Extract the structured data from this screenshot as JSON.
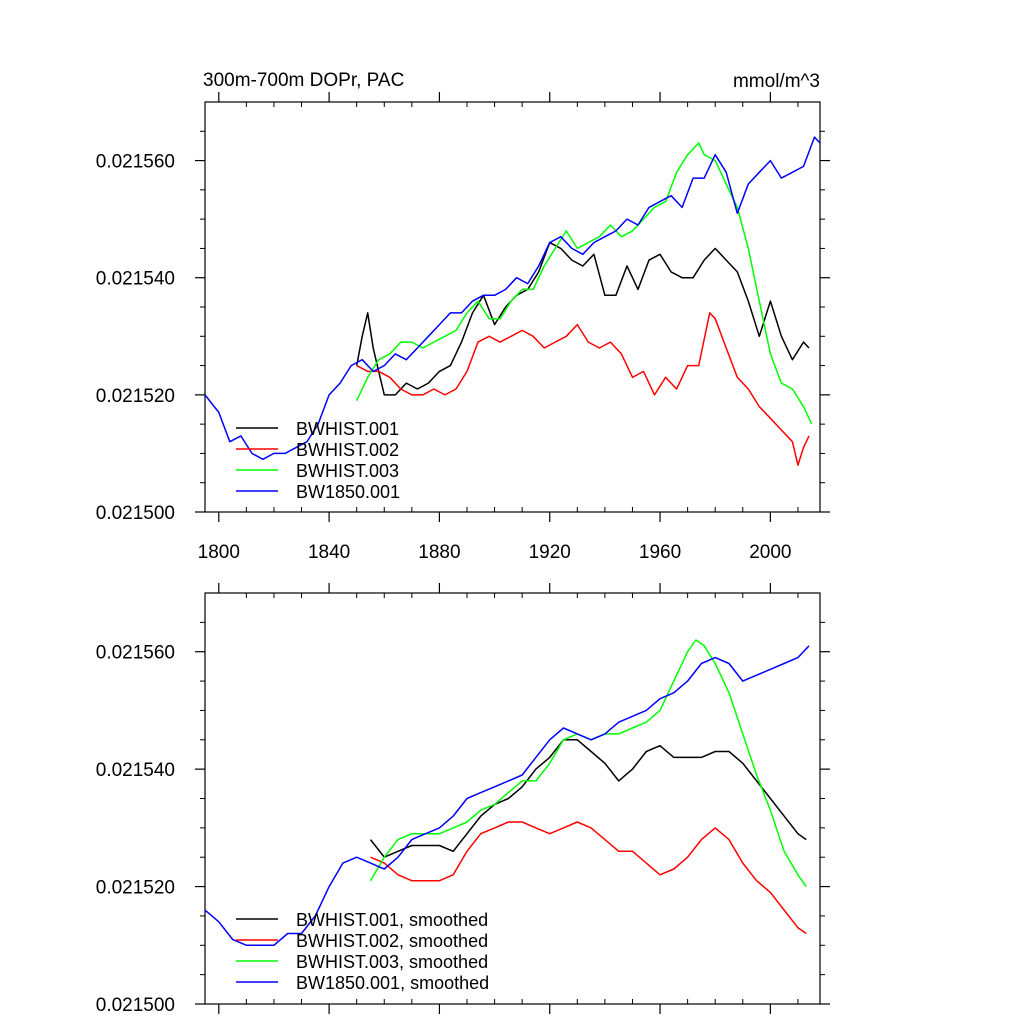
{
  "chart_data": [
    {
      "type": "line",
      "title": "300m-700m DOPr, PAC",
      "units_label": "mmol/m^3",
      "xlabel": "",
      "ylabel": "",
      "xlim": [
        1795,
        2018
      ],
      "ylim": [
        0.0215,
        0.02157
      ],
      "x_ticks": [
        1800,
        1840,
        1880,
        1920,
        1960,
        2000
      ],
      "x_tick_labels": [
        "1800",
        "1840",
        "1880",
        "1920",
        "1960",
        "2000"
      ],
      "y_ticks": [
        0.0215,
        0.02152,
        0.02154,
        0.02156
      ],
      "y_tick_labels": [
        "0.021500",
        "0.021520",
        "0.021540",
        "0.021560"
      ],
      "legend_position": "bottom-left",
      "series": [
        {
          "name": "BWHIST.001",
          "color": "#000000",
          "x": [
            1850,
            1852,
            1854,
            1856,
            1858,
            1860,
            1864,
            1868,
            1872,
            1876,
            1880,
            1884,
            1888,
            1892,
            1896,
            1900,
            1904,
            1908,
            1912,
            1916,
            1920,
            1924,
            1928,
            1932,
            1936,
            1940,
            1944,
            1948,
            1952,
            1956,
            1960,
            1964,
            1968,
            1972,
            1976,
            1980,
            1984,
            1988,
            1992,
            1996,
            2000,
            2004,
            2008,
            2012,
            2014
          ],
          "values": [
            0.021525,
            0.02153,
            0.021534,
            0.021528,
            0.021524,
            0.02152,
            0.02152,
            0.021522,
            0.021521,
            0.021522,
            0.021524,
            0.021525,
            0.021529,
            0.021534,
            0.021537,
            0.021532,
            0.021535,
            0.021537,
            0.021538,
            0.021541,
            0.021546,
            0.021545,
            0.021543,
            0.021542,
            0.021544,
            0.021537,
            0.021537,
            0.021542,
            0.021538,
            0.021543,
            0.021544,
            0.021541,
            0.02154,
            0.02154,
            0.021543,
            0.021545,
            0.021543,
            0.021541,
            0.021536,
            0.02153,
            0.021536,
            0.02153,
            0.021526,
            0.021529,
            0.021528
          ]
        },
        {
          "name": "BWHIST.002",
          "color": "#ff0000",
          "x": [
            1850,
            1854,
            1858,
            1862,
            1866,
            1870,
            1874,
            1878,
            1882,
            1886,
            1890,
            1894,
            1898,
            1902,
            1906,
            1910,
            1914,
            1918,
            1922,
            1926,
            1930,
            1934,
            1938,
            1942,
            1946,
            1950,
            1954,
            1958,
            1962,
            1966,
            1970,
            1974,
            1978,
            1980,
            1984,
            1988,
            1992,
            1996,
            2000,
            2004,
            2008,
            2010,
            2012,
            2014
          ],
          "values": [
            0.021525,
            0.021524,
            0.021524,
            0.021523,
            0.021521,
            0.02152,
            0.02152,
            0.021521,
            0.02152,
            0.021521,
            0.021524,
            0.021529,
            0.02153,
            0.021529,
            0.02153,
            0.021531,
            0.02153,
            0.021528,
            0.021529,
            0.02153,
            0.021532,
            0.021529,
            0.021528,
            0.021529,
            0.021527,
            0.021523,
            0.021524,
            0.02152,
            0.021523,
            0.021521,
            0.021525,
            0.021525,
            0.021534,
            0.021533,
            0.021528,
            0.021523,
            0.021521,
            0.021518,
            0.021516,
            0.021514,
            0.021512,
            0.021508,
            0.021511,
            0.021513
          ]
        },
        {
          "name": "BWHIST.003",
          "color": "#00ff00",
          "x": [
            1850,
            1854,
            1858,
            1862,
            1866,
            1870,
            1874,
            1878,
            1882,
            1886,
            1890,
            1894,
            1898,
            1902,
            1906,
            1910,
            1914,
            1918,
            1922,
            1926,
            1930,
            1934,
            1938,
            1942,
            1946,
            1950,
            1954,
            1958,
            1962,
            1966,
            1970,
            1974,
            1976,
            1980,
            1984,
            1988,
            1992,
            1996,
            2000,
            2004,
            2008,
            2012,
            2015
          ],
          "values": [
            0.021519,
            0.021523,
            0.021526,
            0.021527,
            0.021529,
            0.021529,
            0.021528,
            0.021529,
            0.02153,
            0.021531,
            0.021534,
            0.021536,
            0.021533,
            0.021533,
            0.021536,
            0.021538,
            0.021538,
            0.021542,
            0.021545,
            0.021548,
            0.021545,
            0.021546,
            0.021547,
            0.021549,
            0.021547,
            0.021548,
            0.02155,
            0.021552,
            0.021553,
            0.021558,
            0.021561,
            0.021563,
            0.021561,
            0.02156,
            0.021556,
            0.021552,
            0.021545,
            0.021536,
            0.021527,
            0.021522,
            0.021521,
            0.021518,
            0.021515
          ]
        },
        {
          "name": "BW1850.001",
          "color": "#0000ff",
          "x": [
            1795,
            1800,
            1804,
            1808,
            1812,
            1816,
            1820,
            1824,
            1828,
            1832,
            1836,
            1840,
            1844,
            1848,
            1852,
            1856,
            1860,
            1864,
            1868,
            1872,
            1876,
            1880,
            1884,
            1888,
            1892,
            1896,
            1900,
            1904,
            1908,
            1912,
            1916,
            1920,
            1924,
            1928,
            1932,
            1936,
            1940,
            1944,
            1948,
            1952,
            1956,
            1960,
            1964,
            1968,
            1972,
            1976,
            1980,
            1984,
            1988,
            1992,
            1996,
            2000,
            2004,
            2008,
            2012,
            2016,
            2018
          ],
          "values": [
            0.02152,
            0.021517,
            0.021512,
            0.021513,
            0.02151,
            0.021509,
            0.02151,
            0.02151,
            0.021511,
            0.021512,
            0.021515,
            0.02152,
            0.021522,
            0.021525,
            0.021526,
            0.021524,
            0.021525,
            0.021527,
            0.021526,
            0.021528,
            0.02153,
            0.021532,
            0.021534,
            0.021534,
            0.021536,
            0.021537,
            0.021537,
            0.021538,
            0.02154,
            0.021539,
            0.021542,
            0.021546,
            0.021547,
            0.021545,
            0.021544,
            0.021546,
            0.021547,
            0.021548,
            0.02155,
            0.021549,
            0.021552,
            0.021553,
            0.021554,
            0.021552,
            0.021557,
            0.021557,
            0.021561,
            0.021558,
            0.021551,
            0.021556,
            0.021558,
            0.02156,
            0.021557,
            0.021558,
            0.021559,
            0.021564,
            0.021563
          ]
        }
      ]
    },
    {
      "type": "line",
      "title": "",
      "xlabel": "",
      "ylabel": "",
      "xlim": [
        1795,
        2018
      ],
      "ylim": [
        0.0215,
        0.02157
      ],
      "x_ticks": [
        1800,
        1840,
        1880,
        1920,
        1960,
        2000
      ],
      "y_ticks": [
        0.0215,
        0.02152,
        0.02154,
        0.02156
      ],
      "y_tick_labels": [
        "0.021500",
        "0.021520",
        "0.021540",
        "0.021560"
      ],
      "legend_position": "bottom-left",
      "series": [
        {
          "name": "BWHIST.001, smoothed",
          "color": "#000000",
          "x": [
            1855,
            1860,
            1865,
            1870,
            1875,
            1880,
            1885,
            1890,
            1895,
            1900,
            1905,
            1910,
            1915,
            1920,
            1925,
            1930,
            1935,
            1940,
            1945,
            1950,
            1955,
            1960,
            1965,
            1970,
            1975,
            1980,
            1985,
            1990,
            1995,
            2000,
            2005,
            2010,
            2013
          ],
          "values": [
            0.021528,
            0.021525,
            0.021526,
            0.021527,
            0.021527,
            0.021527,
            0.021526,
            0.021529,
            0.021532,
            0.021534,
            0.021535,
            0.021537,
            0.02154,
            0.021542,
            0.021545,
            0.021545,
            0.021543,
            0.021541,
            0.021538,
            0.02154,
            0.021543,
            0.021544,
            0.021542,
            0.021542,
            0.021542,
            0.021543,
            0.021543,
            0.021541,
            0.021538,
            0.021535,
            0.021532,
            0.021529,
            0.021528
          ]
        },
        {
          "name": "BWHIST.002, smoothed",
          "color": "#ff0000",
          "x": [
            1855,
            1860,
            1865,
            1870,
            1875,
            1880,
            1885,
            1890,
            1895,
            1900,
            1905,
            1910,
            1915,
            1920,
            1925,
            1930,
            1935,
            1940,
            1945,
            1950,
            1955,
            1960,
            1965,
            1970,
            1975,
            1980,
            1985,
            1990,
            1995,
            2000,
            2005,
            2010,
            2013
          ],
          "values": [
            0.021525,
            0.021524,
            0.021522,
            0.021521,
            0.021521,
            0.021521,
            0.021522,
            0.021526,
            0.021529,
            0.02153,
            0.021531,
            0.021531,
            0.02153,
            0.021529,
            0.02153,
            0.021531,
            0.02153,
            0.021528,
            0.021526,
            0.021526,
            0.021524,
            0.021522,
            0.021523,
            0.021525,
            0.021528,
            0.02153,
            0.021528,
            0.021524,
            0.021521,
            0.021519,
            0.021516,
            0.021513,
            0.021512
          ]
        },
        {
          "name": "BWHIST.003, smoothed",
          "color": "#00ff00",
          "x": [
            1855,
            1860,
            1865,
            1870,
            1875,
            1880,
            1885,
            1890,
            1895,
            1900,
            1905,
            1910,
            1915,
            1920,
            1925,
            1930,
            1935,
            1940,
            1945,
            1950,
            1955,
            1960,
            1965,
            1970,
            1973,
            1976,
            1980,
            1985,
            1990,
            1995,
            2000,
            2005,
            2010,
            2013
          ],
          "values": [
            0.021521,
            0.021525,
            0.021528,
            0.021529,
            0.021529,
            0.021529,
            0.02153,
            0.021531,
            0.021533,
            0.021534,
            0.021536,
            0.021538,
            0.021538,
            0.021541,
            0.021545,
            0.021546,
            0.021545,
            0.021546,
            0.021546,
            0.021547,
            0.021548,
            0.02155,
            0.021555,
            0.02156,
            0.021562,
            0.021561,
            0.021558,
            0.021553,
            0.021546,
            0.021539,
            0.021533,
            0.021526,
            0.021522,
            0.02152
          ]
        },
        {
          "name": "BW1850.001, smoothed",
          "color": "#0000ff",
          "x": [
            1795,
            1800,
            1805,
            1810,
            1815,
            1820,
            1825,
            1830,
            1835,
            1840,
            1845,
            1850,
            1855,
            1860,
            1865,
            1870,
            1875,
            1880,
            1885,
            1890,
            1895,
            1900,
            1905,
            1910,
            1915,
            1920,
            1925,
            1930,
            1935,
            1940,
            1945,
            1950,
            1955,
            1960,
            1965,
            1970,
            1975,
            1980,
            1985,
            1990,
            1995,
            2000,
            2005,
            2010,
            2014
          ],
          "values": [
            0.021516,
            0.021514,
            0.021511,
            0.02151,
            0.02151,
            0.02151,
            0.021512,
            0.021512,
            0.021515,
            0.02152,
            0.021524,
            0.021525,
            0.021524,
            0.021523,
            0.021525,
            0.021528,
            0.021529,
            0.02153,
            0.021532,
            0.021535,
            0.021536,
            0.021537,
            0.021538,
            0.021539,
            0.021542,
            0.021545,
            0.021547,
            0.021546,
            0.021545,
            0.021546,
            0.021548,
            0.021549,
            0.02155,
            0.021552,
            0.021553,
            0.021555,
            0.021558,
            0.021559,
            0.021558,
            0.021555,
            0.021556,
            0.021557,
            0.021558,
            0.021559,
            0.021561
          ]
        }
      ]
    }
  ]
}
